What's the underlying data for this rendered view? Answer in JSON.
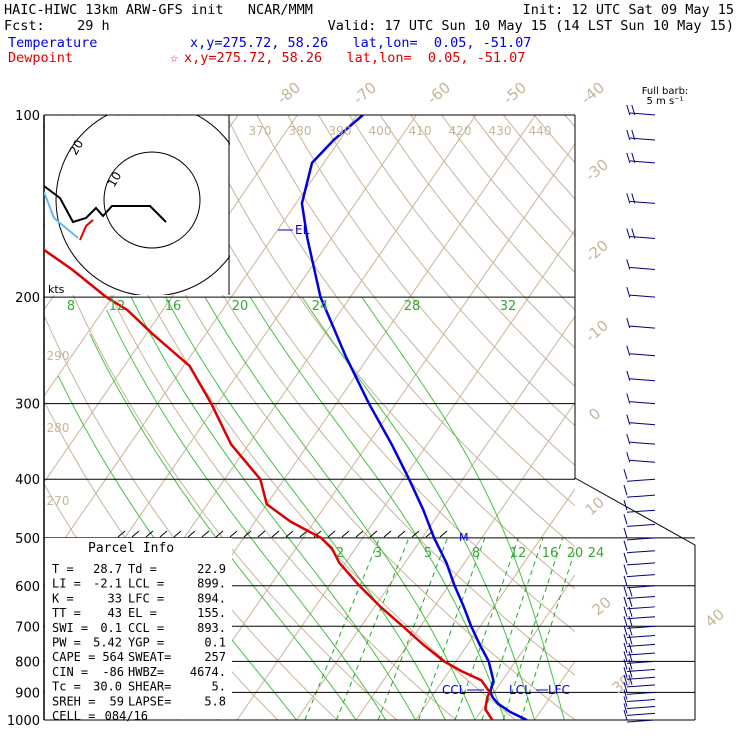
{
  "header": {
    "line1_left": "HAIC-HIWC 13km ARW-GFS init   NCAR/MMM",
    "line1_right": "Init: 12 UTC Sat 09 May 15",
    "line2_left": "Fcst:    29 h",
    "line2_right": "Valid: 17 UTC Sun 10 May 15 (14 LST Sun 10 May 15)",
    "temp_label": "Temperature",
    "temp_coords": "x,y=275.72, 58.26   lat,lon=  0.05, -51.07",
    "dew_label": "Dewpoint",
    "dew_marker": "☆",
    "dew_coords": "x,y=275.72, 58.26   lat,lon=  0.05, -51.07",
    "temp_color": "#0000dd",
    "dew_color": "#dd0000"
  },
  "barb_legend": {
    "line1": "Full barb:",
    "line2": "5 m s⁻¹"
  },
  "hodograph": {
    "units": "kts",
    "ring_labels": [
      "20",
      "10"
    ]
  },
  "parcel_info": {
    "title": "Parcel Info",
    "rows": [
      [
        "T   =",
        "28.7",
        "Td =",
        "22.9"
      ],
      [
        "LI  =",
        "-2.1",
        "LCL =",
        "899."
      ],
      [
        "K   =",
        "33",
        "LFC =",
        "894."
      ],
      [
        "TT  =",
        "43",
        "EL  =",
        "155."
      ],
      [
        "SWI =",
        "0.1",
        "CCL =",
        "893."
      ],
      [
        "PW  =",
        "5.42",
        "YGP =",
        "0.1"
      ],
      [
        "CAPE =",
        "564",
        "SWEAT=",
        "257"
      ],
      [
        "CIN  =",
        "-86",
        "HWBZ=",
        "4674."
      ],
      [
        "Tc  =",
        "30.0",
        "SHEAR=",
        "5."
      ],
      [
        "SREH =",
        "59",
        "LAPSE=",
        "5.8"
      ],
      [
        "CELL =",
        "084/16",
        "",
        ""
      ]
    ]
  },
  "chart_data": {
    "type": "line",
    "subtype": "skew-T log-p sounding",
    "y_axis": {
      "scale": "log",
      "ticks": [
        100,
        200,
        300,
        400,
        500,
        600,
        700,
        800,
        900,
        1000
      ]
    },
    "isotherm_labels": [
      "-80",
      "-70",
      "-60",
      "-50",
      "-40",
      "-30",
      "-20",
      "-10",
      "0",
      "10",
      "20",
      "30",
      "40"
    ],
    "theta_labels": [
      "370",
      "380",
      "390",
      "400",
      "410",
      "420",
      "430",
      "440",
      "290",
      "280",
      "270"
    ],
    "mixing_ratio_labels_top": [
      "8",
      "12",
      "16",
      "20",
      "24",
      "28",
      "32"
    ],
    "mixing_ratio_labels_low": [
      "2",
      "3",
      "5",
      "8",
      "12",
      "16",
      "20",
      "24"
    ],
    "level_labels": [
      "EL",
      "CCL",
      "LCL",
      "LFC",
      "M"
    ],
    "series": [
      {
        "name": "Temperature",
        "color": "#0000dd",
        "points": [
          [
            1000,
            28.7
          ],
          [
            970,
            25
          ],
          [
            940,
            22
          ],
          [
            920,
            20.5
          ],
          [
            899,
            19.3
          ],
          [
            860,
            18.5
          ],
          [
            800,
            15.5
          ],
          [
            750,
            12
          ],
          [
            700,
            8.5
          ],
          [
            650,
            5
          ],
          [
            600,
            1
          ],
          [
            550,
            -3
          ],
          [
            500,
            -8
          ],
          [
            450,
            -13
          ],
          [
            400,
            -19
          ],
          [
            350,
            -26
          ],
          [
            300,
            -34.5
          ],
          [
            250,
            -44
          ],
          [
            200,
            -55
          ],
          [
            160,
            -64
          ],
          [
            140,
            -69
          ],
          [
            120,
            -72
          ],
          [
            110,
            -71
          ],
          [
            100,
            -69
          ]
        ]
      },
      {
        "name": "Dewpoint",
        "color": "#dd0000",
        "points": [
          [
            1000,
            22.9
          ],
          [
            960,
            20.5
          ],
          [
            920,
            19.5
          ],
          [
            899,
            19.2
          ],
          [
            860,
            16.5
          ],
          [
            830,
            12
          ],
          [
            800,
            8
          ],
          [
            750,
            2.5
          ],
          [
            700,
            -3
          ],
          [
            650,
            -9
          ],
          [
            600,
            -15
          ],
          [
            550,
            -21
          ],
          [
            520,
            -24
          ],
          [
            500,
            -27
          ],
          [
            470,
            -34
          ],
          [
            440,
            -40
          ],
          [
            400,
            -44
          ],
          [
            350,
            -53
          ],
          [
            300,
            -61
          ],
          [
            260,
            -69
          ],
          [
            230,
            -79
          ],
          [
            210,
            -86
          ],
          [
            200,
            -91
          ],
          [
            180,
            -100
          ],
          [
            160,
            -111
          ],
          [
            140,
            -118
          ],
          [
            120,
            -122
          ],
          [
            110,
            -126
          ],
          [
            100,
            -130
          ]
        ]
      }
    ],
    "wind_profile": [
      [
        1000,
        5,
        175
      ],
      [
        975,
        5,
        170
      ],
      [
        950,
        5,
        160
      ],
      [
        925,
        5,
        150
      ],
      [
        900,
        7,
        140
      ],
      [
        875,
        8,
        130
      ],
      [
        850,
        8,
        130
      ],
      [
        825,
        8,
        125
      ],
      [
        800,
        8,
        120
      ],
      [
        775,
        8,
        110
      ],
      [
        750,
        8,
        100
      ],
      [
        725,
        9,
        95
      ],
      [
        700,
        9,
        95
      ],
      [
        675,
        8,
        95
      ],
      [
        650,
        8,
        100
      ],
      [
        625,
        8,
        105
      ],
      [
        600,
        7,
        110
      ],
      [
        575,
        6,
        115
      ],
      [
        550,
        5,
        120
      ],
      [
        525,
        5,
        130
      ],
      [
        500,
        5,
        140
      ],
      [
        475,
        5,
        150
      ],
      [
        450,
        5,
        160
      ],
      [
        425,
        5,
        170
      ],
      [
        400,
        5,
        175
      ],
      [
        375,
        5,
        180
      ],
      [
        350,
        5,
        185
      ],
      [
        325,
        5,
        190
      ],
      [
        300,
        5,
        195
      ],
      [
        275,
        6,
        200
      ],
      [
        250,
        6,
        205
      ],
      [
        225,
        6,
        210
      ],
      [
        200,
        7,
        210
      ],
      [
        180,
        7,
        215
      ],
      [
        160,
        8,
        220
      ],
      [
        140,
        8,
        220
      ],
      [
        120,
        8,
        215
      ],
      [
        110,
        9,
        215
      ],
      [
        100,
        9,
        215
      ]
    ]
  }
}
